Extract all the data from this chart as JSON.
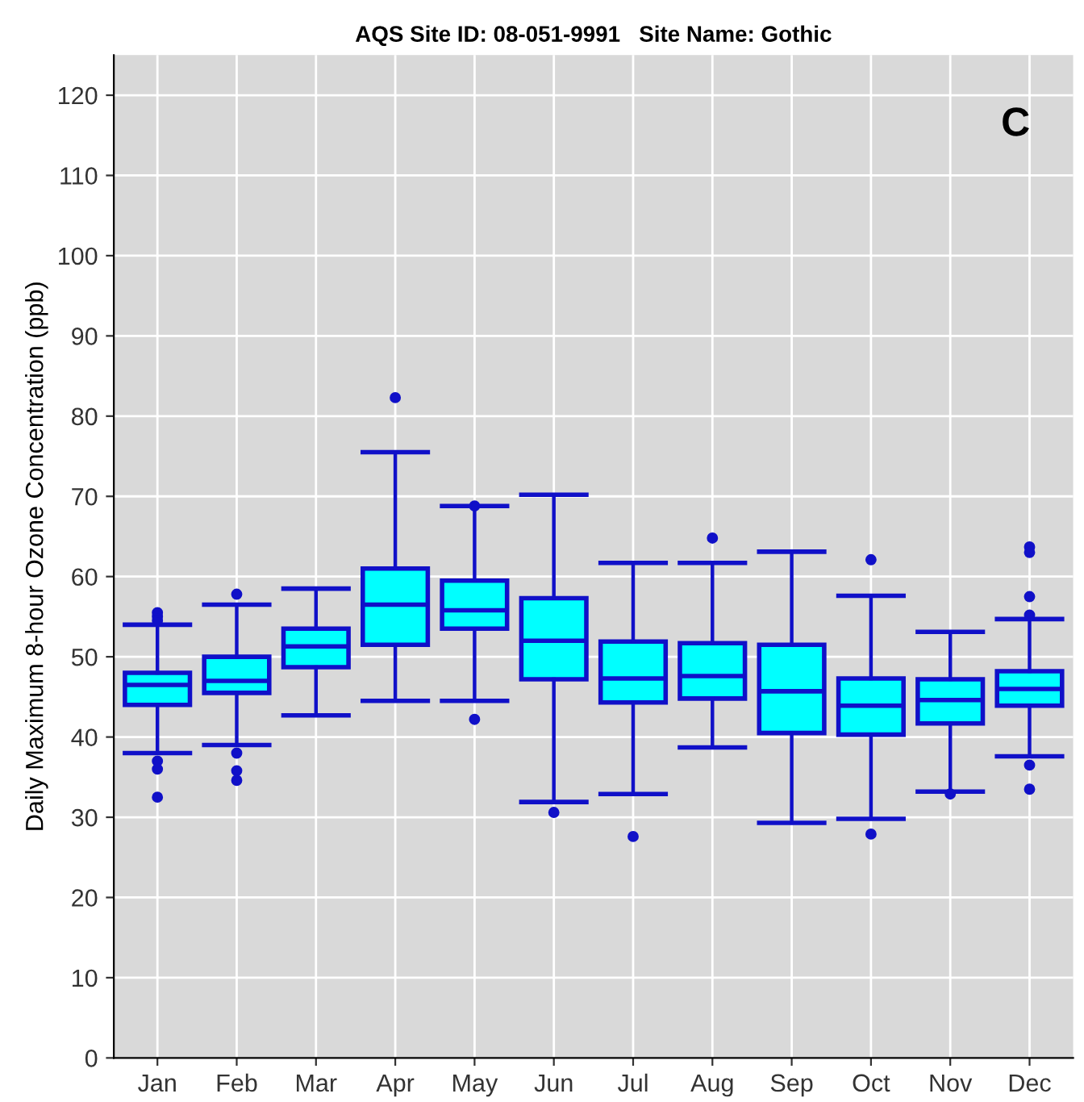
{
  "chart_data": {
    "type": "box",
    "title": "AQS Site ID: 08-051-9991   Site Name: Gothic",
    "ylabel": "Daily Maximum 8-hour Ozone Concentration (ppb)",
    "annotations": [
      "C"
    ],
    "categories": [
      "Jan",
      "Feb",
      "Mar",
      "Apr",
      "May",
      "Jun",
      "Jul",
      "Aug",
      "Sep",
      "Oct",
      "Nov",
      "Dec"
    ],
    "color": "#00ffff",
    "boxes": [
      {
        "low": 38,
        "q1": 44,
        "median": 46.5,
        "q3": 48,
        "high": 54,
        "outliers": [
          55.5,
          55,
          54.5,
          37,
          36,
          32.5
        ]
      },
      {
        "low": 39,
        "q1": 45.5,
        "median": 47,
        "q3": 50,
        "high": 56.5,
        "outliers": [
          57.8,
          38,
          35.8,
          34.6
        ]
      },
      {
        "low": 42.7,
        "q1": 48.7,
        "median": 51.3,
        "q3": 53.5,
        "high": 58.5
      },
      {
        "low": 44.5,
        "q1": 51.5,
        "median": 56.5,
        "q3": 61,
        "high": 75.5,
        "outliers": [
          82.3
        ]
      },
      {
        "low": 44.5,
        "q1": 53.5,
        "median": 55.8,
        "q3": 59.5,
        "high": 68.8,
        "outliers": [
          68.8,
          42.2
        ]
      },
      {
        "low": 31.9,
        "q1": 47.2,
        "median": 52,
        "q3": 57.3,
        "high": 70.2,
        "outliers": [
          30.6
        ]
      },
      {
        "low": 32.9,
        "q1": 44.3,
        "median": 47.3,
        "q3": 51.9,
        "high": 61.7,
        "outliers": [
          27.6
        ]
      },
      {
        "low": 38.7,
        "q1": 44.8,
        "median": 47.6,
        "q3": 51.7,
        "high": 61.7,
        "outliers": [
          64.8
        ]
      },
      {
        "low": 29.3,
        "q1": 40.5,
        "median": 45.7,
        "q3": 51.5,
        "high": 63.1
      },
      {
        "low": 29.8,
        "q1": 40.3,
        "median": 43.9,
        "q3": 47.3,
        "high": 57.6,
        "outliers": [
          62.1,
          27.9
        ]
      },
      {
        "low": 33.2,
        "q1": 41.7,
        "median": 44.6,
        "q3": 47.2,
        "high": 53.1,
        "outliers": [
          32.9
        ]
      },
      {
        "low": 37.6,
        "q1": 43.9,
        "median": 46,
        "q3": 48.2,
        "high": 54.7,
        "outliers": [
          63.7,
          63,
          57.5,
          55.2,
          36.5,
          33.5
        ]
      }
    ],
    "ylim": [
      0,
      125
    ],
    "yticks": [
      0,
      10,
      20,
      30,
      40,
      50,
      60,
      70,
      80,
      90,
      100,
      110,
      120
    ],
    "grid": true
  }
}
